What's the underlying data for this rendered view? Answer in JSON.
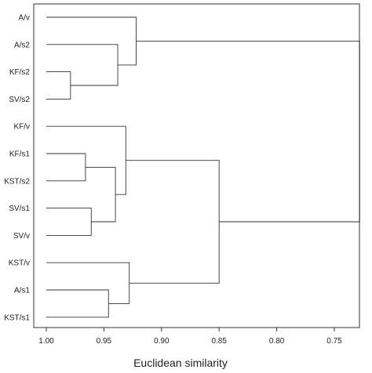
{
  "chart_data": {
    "type": "dendrogram",
    "xlabel": "Euclidean similarity",
    "xlim": [
      1.0,
      0.73
    ],
    "x_ticks": [
      {
        "value": 1.0,
        "label": "1.00"
      },
      {
        "value": 0.95,
        "label": "0.95"
      },
      {
        "value": 0.9,
        "label": "0.90"
      },
      {
        "value": 0.85,
        "label": "0.85"
      },
      {
        "value": 0.8,
        "label": "0.80"
      },
      {
        "value": 0.75,
        "label": "0.75"
      }
    ],
    "leaves": [
      "A/v",
      "A/s2",
      "KF/s2",
      "SV/s2",
      "KF/v",
      "KF/s1",
      "KST/s2",
      "SV/s1",
      "SV/v",
      "KST/v",
      "A/s1",
      "KST/s1"
    ],
    "merges": [
      {
        "id": "m1",
        "children": [
          "KF/s2",
          "SV/s2"
        ],
        "similarity": 0.979
      },
      {
        "id": "m2",
        "children": [
          "A/s2",
          "m1"
        ],
        "similarity": 0.938
      },
      {
        "id": "m3",
        "children": [
          "A/v",
          "m2"
        ],
        "similarity": 0.922
      },
      {
        "id": "m4",
        "children": [
          "KF/s1",
          "KST/s2"
        ],
        "similarity": 0.966
      },
      {
        "id": "m5",
        "children": [
          "SV/s1",
          "SV/v"
        ],
        "similarity": 0.961
      },
      {
        "id": "m6",
        "children": [
          "m4",
          "m5"
        ],
        "similarity": 0.94
      },
      {
        "id": "m7",
        "children": [
          "KF/v",
          "m6"
        ],
        "similarity": 0.931
      },
      {
        "id": "m8",
        "children": [
          "A/s1",
          "KST/s1"
        ],
        "similarity": 0.946
      },
      {
        "id": "m9",
        "children": [
          "KST/v",
          "m8"
        ],
        "similarity": 0.928
      },
      {
        "id": "m10",
        "children": [
          "m7",
          "m9"
        ],
        "similarity": 0.85
      },
      {
        "id": "m11",
        "children": [
          "m3",
          "m10"
        ],
        "similarity": 0.728
      }
    ]
  }
}
